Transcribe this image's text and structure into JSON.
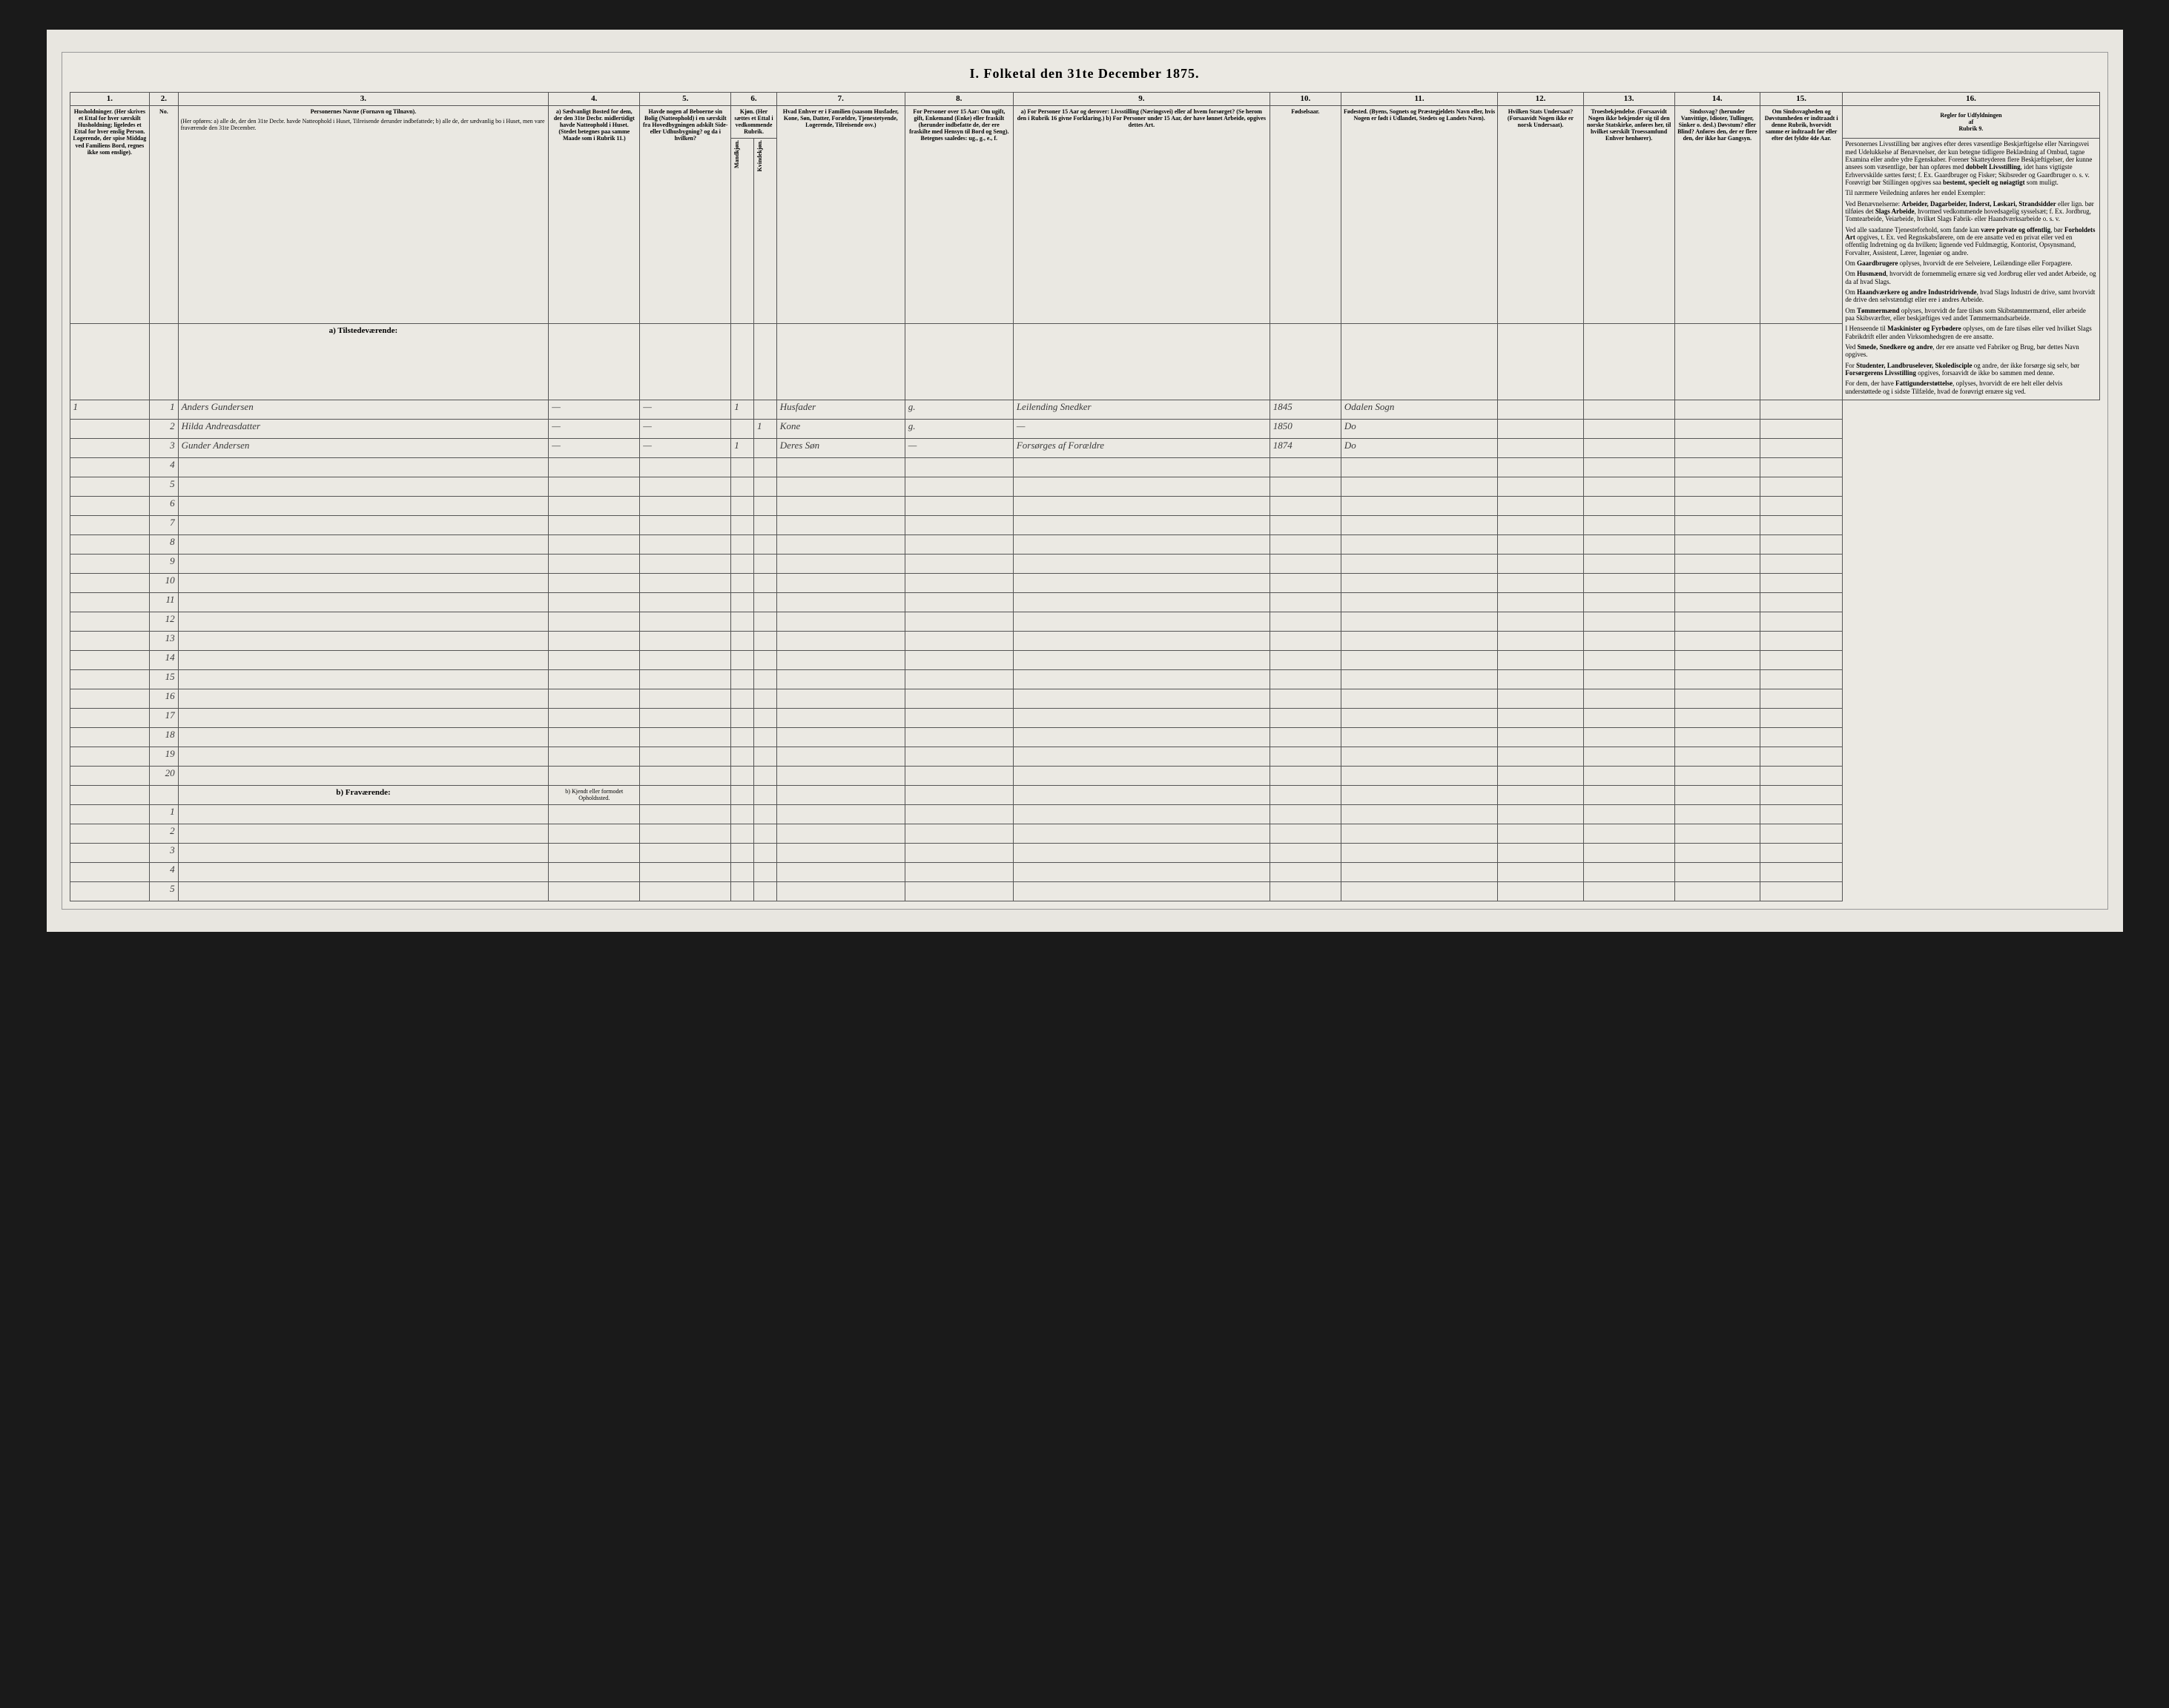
{
  "title": "I. Folketal den 31te December 1875.",
  "column_numbers": [
    "1.",
    "2.",
    "3.",
    "4.",
    "5.",
    "6.",
    "7.",
    "8.",
    "9.",
    "10.",
    "11.",
    "12.",
    "13.",
    "14.",
    "15.",
    "16."
  ],
  "headers": {
    "c1": "Husholdninger.\n(Her skrives et Ettal for hver særskilt Husholdning; ligeledes et Ettal for hver enslig Person.\nLogerende, der spise Middag ved Familiens Bord, regnes ikke som enslige).",
    "c2": "No.",
    "c3_title": "Personernes Navne (Fornavn og Tilnavn).",
    "c3_body": "(Her opføres:\na) alle de, der den 31te Decbr. havde Natteophold i Huset, Tilreisende derunder indbefattede;\nb) alle de, der sædvanlig bo i Huset, men vare fraværende den 31te December.",
    "c4": "a) Sædvanligt Bosted for dem, der den 31te Decbr. midlertidigt havde Natteophold i Huset.\n(Stedet betegnes paa samme Maade som i Rubrik 11.)",
    "c5": "Havde nogen af Beboerne sin Bolig (Natteophold) i en særskilt fra Hovedbygningen adskilt Side- eller Udhusbygning? og da i hvilken?",
    "c6": "Kjøn.\n(Her sættes et Ettal i vedkommende Rubrik.",
    "c6a": "Mandkjøn.",
    "c6b": "Kvindekjøn.",
    "c7": "Hvad Enhver er i Familien\n(saasom Husfader, Kone, Søn, Datter, Forældre, Tjenestetyende, Logerende, Tilreisende osv.)",
    "c8": "For Personer over 15 Aar: Om ugift, gift, Enkemand (Enke) eller fraskilt (herunder indbefatte de, der ere fraskilte med Hensyn til Bord og Seng).\nBetegnes saaledes: ug., g., e., f.",
    "c9": "a) For Personer 15 Aar og derover: Livsstilling (Næringsvei) eller af hvem forsørget? (Se herom den i Rubrik 16 givne Forklaring.)\nb) For Personer under 15 Aar, der have lønnet Arbeide, opgives dettes Art.",
    "c10": "Fødselsaar.",
    "c11": "Fødested.\n(Byens, Sognets og Præstegjeldets Navn eller, hvis Nogen er født i Udlandet, Stedets og Landets Navn).",
    "c12": "Hvilken Stats Undersaat?\n(Forsaavidt Nogen ikke er norsk Undersaat).",
    "c13": "Troesbekjendelse.\n(Forsaavidt Nogen ikke bekjender sig til den norske Statskirke, anføres her, til hvilket særskilt Troessamfund Enhver henhører).",
    "c14": "Sindssvag? (herunder Vanvittige, Idioter, Tullinger, Sinker o. desl.) Døvstum? eller Blind?\nAnføres den, der er flere den, der ikke har Gangsyn.",
    "c15": "Om Sindssvagheden og Døvstumheden er indtraadt i denne Rubrik, hvorvidt samme er indtraadt før eller efter det fyldte 4de Aar.",
    "c16_title": "Regler for Udfyldningen\naf\nRubrik 9."
  },
  "section_a": "a) Tilstedeværende:",
  "section_b": "b) Fraværende:",
  "section_b_col4": "b) Kjendt eller formodet Opholdssted.",
  "rows_a": [
    {
      "n": "1",
      "hh": "1",
      "name": "Anders Gundersen",
      "c4": "—",
      "c5": "—",
      "m": "1",
      "k": "",
      "fam": "Husfader",
      "mar": "g.",
      "occ": "Leilending Snedker",
      "year": "1845",
      "birthplace": "Odalen Sogn"
    },
    {
      "n": "2",
      "hh": "",
      "name": "Hilda Andreasdatter",
      "c4": "—",
      "c5": "—",
      "m": "",
      "k": "1",
      "fam": "Kone",
      "mar": "g.",
      "occ": "—",
      "year": "1850",
      "birthplace": "Do"
    },
    {
      "n": "3",
      "hh": "",
      "name": "Gunder Andersen",
      "c4": "—",
      "c5": "—",
      "m": "1",
      "k": "",
      "fam": "Deres Søn",
      "mar": "—",
      "occ": "Forsørges af Forældre",
      "year": "1874",
      "birthplace": "Do"
    }
  ],
  "empty_a_rows": [
    "4",
    "5",
    "6",
    "7",
    "8",
    "9",
    "10",
    "11",
    "12",
    "13",
    "14",
    "15",
    "16",
    "17",
    "18",
    "19",
    "20"
  ],
  "empty_b_rows": [
    "1",
    "2",
    "3",
    "4",
    "5"
  ],
  "instructions": [
    "Personernes Livsstilling bør angives efter deres væsentlige Beskjæftigelse eller Næringsvei med Udelukkelse af Benævnelser, der kun betegne tidligere Beklædning af Ombud, tagne Examina eller andre ydre Egenskaber. Forener Skatteyderen flere Beskjæftigelser, der kunne ansees som væsentlige, bør han opføres med <b>dobbelt Livsstilling</b>, idet hans vigtigste Erhvervskilde sættes først; f. Ex. Gaardbruger og Fisker; Skibsreder og Gaardbruger o. s. v. Forøvrigt bør Stillingen opgives saa <b>bestemt, specielt og nøiagtigt</b> som muligt.",
    "Til nærmere Veiledning anføres her endel Exempler:",
    "Ved Benævnelserne: <b>Arbeider, Dagarbeider, Inderst, Løskari, Strandsidder</b> eller lign. bør tilføies det <b>Slags Arbeide</b>, hvormed vedkommende hovedsagelig sysselsæt; f. Ex. Jordbrug, Tomtearbeide, Veiarbeide, hvilket Slags Fabrik- eller Haandværksarbeide o. s. v.",
    "Ved alle saadanne Tjenesteforhold, som fande kan <b>være private og offentlig</b>, bør <b>Forholdets Art</b> opgives, t. Ex. ved Regnskabsførere, om de ere ansatte ved en privat eller ved en offentlig Indretning og da hvilken; lignende ved Fuldmægtig, Kontorist, Opsynsmand, Forvalter, Assistent, Lærer, Ingeniør og andre.",
    "Om <b>Gaardbrugere</b> oplyses, hvorvidt de ere Selveiere, Leilændinge eller Forpagtere.",
    "Om <b>Husmænd</b>, hvorvidt de fornemmelig ernære sig ved Jordbrug eller ved andet Arbeide, og da af hvad Slags.",
    "Om <b>Haandværkere og andre Industridrivende</b>, hvad Slags Industri de drive, samt hvorvidt de drive den selvstændigt eller ere i andres Arbeide.",
    "Om <b>Tømmermænd</b> oplyses, hvorvidt de fare tilsøs som Skibstømmermænd, eller arbeide paa Skibsværfter, eller beskjæftiges ved andet Tømmermandsarbeide.",
    "I Henseende til <b>Maskinister og Fyrbødere</b> oplyses, om de fare tilsøs eller ved hvilket Slags Fabrikdrift eller anden Virksomhedsgren de ere ansatte.",
    "Ved <b>Smede, Snedkere og andre</b>, der ere ansatte ved Fabriker og Brug, bør dettes Navn opgives.",
    "For <b>Studenter, Landbruselever, Skoledisciple</b> og andre, der ikke forsørge sig selv, bør <b>Forsørgerens Livsstilling</b> opgives, forsaavidt de ikke bo sammen med denne.",
    "For dem, der have <b>Fattigunderstøttelse</b>, oplyses, hvorvidt de ere helt eller delvis understøttede og i sidste Tilfælde, hvad de forøvrigt ernære sig ved."
  ],
  "col_widths": {
    "c1": 56,
    "c2": 20,
    "c3": 260,
    "c4": 64,
    "c5": 64,
    "c6a": 16,
    "c6b": 16,
    "c7": 90,
    "c8": 76,
    "c9": 180,
    "c10": 50,
    "c11": 110,
    "c12": 60,
    "c13": 64,
    "c14": 60,
    "c15": 58,
    "c16": 180
  },
  "colors": {
    "page_bg": "#e8e6e0",
    "line": "#555555",
    "ink": "#2a2a2a",
    "script": "#3a3a3a"
  }
}
